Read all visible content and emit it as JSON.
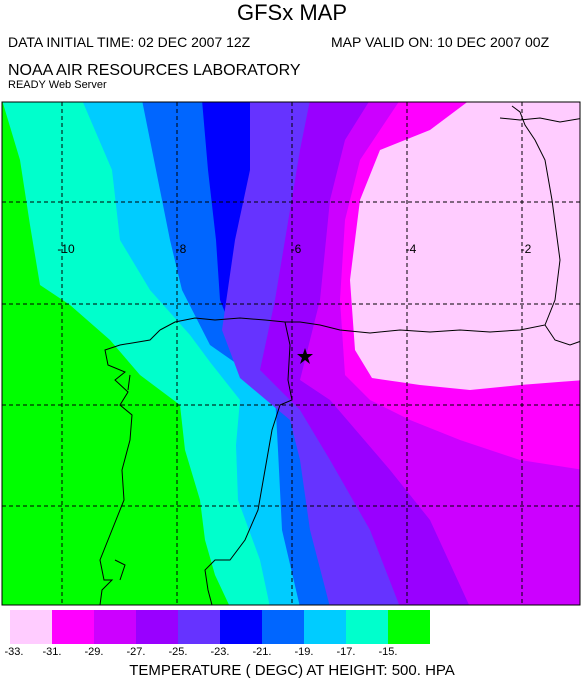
{
  "header": {
    "title": "GFSx MAP",
    "initial_time": "DATA INITIAL TIME: 02 DEC 2007 12Z",
    "valid_time": "MAP VALID ON: 10 DEC 2007 00Z",
    "organization": "NOAA AIR RESOURCES LABORATORY",
    "server": "READY Web Server"
  },
  "map": {
    "longitude_labels": [
      "-10",
      "-8",
      "-6",
      "-4",
      "-2"
    ],
    "marker": "star-icon"
  },
  "legend": {
    "title": "TEMPERATURE ( DEGC) AT HEIGHT: 500. HPA",
    "ticks": [
      "-33.",
      "-31.",
      "-29.",
      "-27.",
      "-25.",
      "-23.",
      "-21.",
      "-19.",
      "-17.",
      "-15."
    ],
    "colors": [
      "#ffccff",
      "#ff00ff",
      "#cc00ff",
      "#9900ff",
      "#6633ff",
      "#0000ff",
      "#0066ff",
      "#00ccff",
      "#00ffcc",
      "#00ff00"
    ]
  }
}
